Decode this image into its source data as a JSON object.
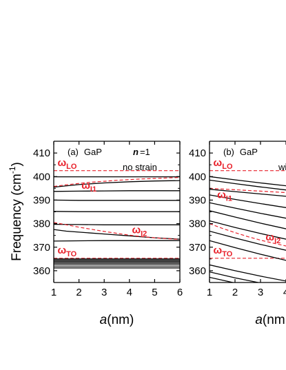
{
  "chart_data": {
    "type": "line",
    "ylabel": "Frequency (cm⁻¹)",
    "ylabel_main": "Frequency (cm",
    "ylabel_sup": "-1",
    "ylabel_close": ")",
    "ylim": [
      355,
      415
    ],
    "yticks": [
      360,
      370,
      380,
      390,
      400,
      410
    ],
    "panels": [
      {
        "id": "a",
        "label_prefix": "(a)",
        "material": "GaP",
        "n_var": "n",
        "n_value": "=1",
        "condition": "no strain",
        "xlabel_var": "a",
        "xlabel_unit": "(nm)",
        "xlim": [
          1,
          6
        ],
        "xticks": [
          1,
          2,
          3,
          4,
          5,
          6
        ],
        "reference_lines": [
          {
            "name": "ωLO",
            "sym": "ω",
            "sub": "LO",
            "y": 402.5,
            "label_x": 1.15,
            "label_y": 404.5
          },
          {
            "name": "ωTO",
            "sym": "ω",
            "sub": "TO",
            "y": 365.3,
            "label_x": 1.15,
            "label_y": 367.3
          }
        ],
        "interface_curves": [
          {
            "name": "ωI1",
            "sym": "ω",
            "sub": "I1",
            "label_x": 2.1,
            "label_y": 394.8,
            "x": [
              1,
              1.5,
              2,
              2.5,
              3,
              3.5,
              4,
              4.5,
              5,
              5.5,
              6
            ],
            "y": [
              395.8,
              396.5,
              397.1,
              397.6,
              398.0,
              398.4,
              398.7,
              399.0,
              399.2,
              399.4,
              399.6
            ]
          },
          {
            "name": "ωI2",
            "sym": "ω",
            "sub": "I2",
            "label_x": 4.1,
            "label_y": 376.0,
            "x": [
              1,
              1.5,
              2,
              2.5,
              3,
              3.5,
              4,
              4.5,
              5,
              5.5,
              6
            ],
            "y": [
              380.5,
              379.5,
              378.5,
              377.6,
              376.7,
              375.9,
              375.1,
              374.5,
              374.0,
              373.6,
              373.3
            ]
          }
        ],
        "confined_modes": [
          {
            "x": [
              1,
              2,
              3,
              4,
              5,
              6
            ],
            "y": [
              399.9,
              399.9,
              399.9,
              399.9,
              399.9,
              399.9
            ]
          },
          {
            "x": [
              1,
              2,
              3,
              4,
              5,
              6
            ],
            "y": [
              395.5,
              396.6,
              397.3,
              397.8,
              398.1,
              398.3
            ]
          },
          {
            "x": [
              1,
              2,
              3,
              4,
              5,
              6
            ],
            "y": [
              393.7,
              393.8,
              393.9,
              394.0,
              394.0,
              394.0
            ]
          },
          {
            "x": [
              1,
              2,
              3,
              4,
              5,
              6
            ],
            "y": [
              390.0,
              389.9,
              389.9,
              389.9,
              389.9,
              389.9
            ]
          },
          {
            "x": [
              1,
              2,
              3,
              4,
              5,
              6
            ],
            "y": [
              385.2,
              385.1,
              385.1,
              385.1,
              385.1,
              385.1
            ]
          },
          {
            "x": [
              1,
              2,
              3,
              4,
              5,
              6
            ],
            "y": [
              379.7,
              379.6,
              379.5,
              379.5,
              379.5,
              379.5
            ]
          },
          {
            "x": [
              1,
              1.5,
              2,
              3,
              4,
              5,
              6
            ],
            "y": [
              377.5,
              376.8,
              376.4,
              375.6,
              374.8,
              374.0,
              373.4
            ]
          },
          {
            "x": [
              1,
              2,
              3,
              4,
              5,
              6
            ],
            "y": [
              372.6,
              372.7,
              372.8,
              372.8,
              372.8,
              372.8
            ]
          },
          {
            "x": [
              1,
              6
            ],
            "y": [
              365.0,
              365.0
            ]
          },
          {
            "x": [
              1,
              6
            ],
            "y": [
              364.5,
              364.5
            ]
          },
          {
            "x": [
              1,
              6
            ],
            "y": [
              364.0,
              364.0
            ]
          },
          {
            "x": [
              1,
              6
            ],
            "y": [
              363.4,
              363.4
            ]
          },
          {
            "x": [
              1,
              6
            ],
            "y": [
              362.8,
              362.8
            ]
          },
          {
            "x": [
              1,
              6
            ],
            "y": [
              362.0,
              362.0
            ]
          },
          {
            "x": [
              1,
              6
            ],
            "y": [
              361.2,
              361.2
            ]
          }
        ]
      },
      {
        "id": "b",
        "label_prefix": "(b)",
        "material": "GaP",
        "n_var": "n",
        "n_value": "",
        "condition": "wit",
        "xlabel_var": "a",
        "xlabel_unit": "(nm",
        "xlim": [
          1,
          6
        ],
        "xticks": [
          1,
          2,
          3,
          4
        ],
        "reference_lines": [
          {
            "name": "ωLO",
            "sym": "ω",
            "sub": "LO",
            "y": 402.5,
            "label_x": 1.15,
            "label_y": 404.5
          },
          {
            "name": "ωTO",
            "sym": "ω",
            "sub": "TO",
            "y": 365.3,
            "label_x": 1.15,
            "label_y": 367.3
          }
        ],
        "interface_curves": [
          {
            "name": "ωI1",
            "sym": "ω",
            "sub": "I1",
            "label_x": 1.3,
            "label_y": 390.8,
            "x": [
              1,
              2,
              3,
              4,
              5,
              6
            ],
            "y": [
              395.0,
              394.4,
              393.8,
              393.2,
              392.6,
              392.0
            ]
          },
          {
            "name": "ωI2",
            "sym": "ω",
            "sub": "I2",
            "label_x": 3.2,
            "label_y": 372.8,
            "x": [
              1,
              1.5,
              2,
              2.5,
              3,
              3.5,
              4,
              4.5,
              5,
              5.5,
              6
            ],
            "y": [
              380.0,
              378.0,
              376.2,
              374.5,
              373.0,
              371.7,
              370.5,
              369.4,
              368.4,
              367.5,
              366.7
            ]
          }
        ],
        "confined_modes": [
          {
            "x": [
              1,
              2,
              3,
              4,
              5,
              6
            ],
            "y": [
              400.0,
              398.6,
              397.3,
              396.1,
              395.0,
              394.0
            ]
          },
          {
            "x": [
              1,
              2,
              3,
              4,
              5,
              6
            ],
            "y": [
              398.5,
              397.0,
              395.6,
              394.3,
              393.1,
              392.0
            ]
          },
          {
            "x": [
              1,
              2,
              3,
              4,
              5,
              6
            ],
            "y": [
              394.6,
              393.6,
              392.6,
              391.6,
              390.6,
              389.6
            ]
          },
          {
            "x": [
              1,
              2,
              3,
              4,
              5,
              6
            ],
            "y": [
              392.2,
              390.3,
              388.5,
              386.8,
              385.2,
              383.7
            ]
          },
          {
            "x": [
              1,
              2,
              3,
              4,
              5,
              6
            ],
            "y": [
              388.9,
              386.6,
              384.4,
              382.3,
              380.4,
              378.6
            ]
          },
          {
            "x": [
              1,
              2,
              3,
              4,
              5,
              6
            ],
            "y": [
              385.5,
              382.8,
              380.2,
              377.8,
              375.6,
              373.5
            ]
          },
          {
            "x": [
              1,
              2,
              3,
              4,
              5,
              6
            ],
            "y": [
              381.2,
              378.4,
              375.8,
              373.4,
              371.2,
              369.2
            ]
          },
          {
            "x": [
              1,
              2,
              3,
              4,
              5,
              6
            ],
            "y": [
              376.8,
              373.9,
              371.2,
              368.7,
              366.4,
              364.3
            ]
          },
          {
            "x": [
              1,
              2,
              3,
              4,
              5,
              6
            ],
            "y": [
              372.8,
              369.8,
              367.0,
              364.4,
              362.0,
              359.8
            ]
          },
          {
            "x": [
              1,
              2,
              3,
              4,
              5,
              6
            ],
            "y": [
              362.5,
              360.0,
              357.7,
              355.6,
              353.7,
              352.0
            ]
          },
          {
            "x": [
              1,
              2,
              3,
              4,
              5,
              6
            ],
            "y": [
              359.5,
              357.0,
              354.8,
              352.8,
              351.0,
              349.4
            ]
          },
          {
            "x": [
              1,
              2,
              3,
              4,
              5,
              6
            ],
            "y": [
              357.2,
              354.8,
              352.6,
              350.6,
              348.8,
              347.2
            ]
          }
        ]
      }
    ]
  }
}
